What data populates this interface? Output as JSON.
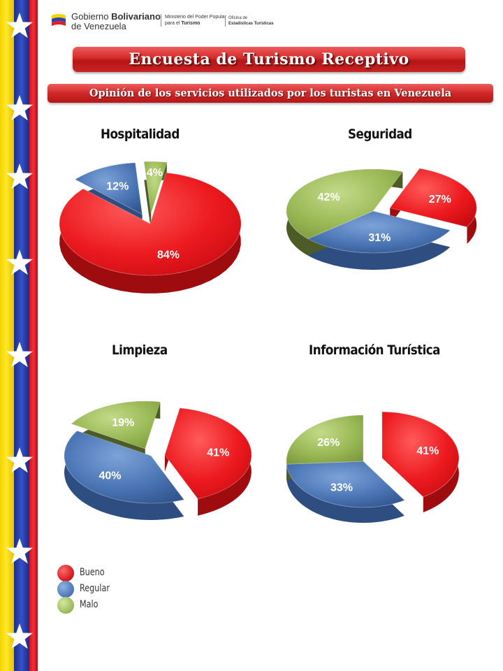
{
  "header": {
    "gob_line1_a": "Gobierno ",
    "gob_line1_b": "Bolivariano",
    "gob_line2": "de Venezuela",
    "ministerio_line1": "Ministerio del Poder Popular",
    "ministerio_line2_a": "para el ",
    "ministerio_line2_b": "Turismo",
    "oficina_line1": "Oficina de",
    "oficina_line2": "Estadísticas Turísticas"
  },
  "title": "Encuesta de Turismo Receptivo",
  "subtitle": "Opinión de los servicios utilizados por los turistas en Venezuela",
  "colors": {
    "bueno": "#e8151c",
    "regular": "#4a74b4",
    "malo": "#9ab955",
    "flag_yellow": "#f4d400",
    "flag_blue": "#2a44b5",
    "flag_red": "#e01e26"
  },
  "legend": {
    "items": [
      {
        "label": "Bueno",
        "color": "#e8151c"
      },
      {
        "label": "Regular",
        "color": "#4a74b4"
      },
      {
        "label": "Malo",
        "color": "#9ab955"
      }
    ]
  },
  "chart_data": [
    {
      "type": "pie",
      "title": "Hospitalidad",
      "slices": [
        {
          "label": "84%",
          "category": "Bueno",
          "value": 84
        },
        {
          "label": "12%",
          "category": "Regular",
          "value": 12
        },
        {
          "label": "4%",
          "category": "Malo",
          "value": 4
        }
      ]
    },
    {
      "type": "pie",
      "title": "Seguridad",
      "slices": [
        {
          "label": "27%",
          "category": "Bueno",
          "value": 27
        },
        {
          "label": "31%",
          "category": "Regular",
          "value": 31
        },
        {
          "label": "42%",
          "category": "Malo",
          "value": 42
        }
      ]
    },
    {
      "type": "pie",
      "title": "Limpieza",
      "slices": [
        {
          "label": "41%",
          "category": "Bueno",
          "value": 41
        },
        {
          "label": "40%",
          "category": "Regular",
          "value": 40
        },
        {
          "label": "19%",
          "category": "Malo",
          "value": 19
        }
      ]
    },
    {
      "type": "pie",
      "title": "Información Turística",
      "slices": [
        {
          "label": "41%",
          "category": "Bueno",
          "value": 41
        },
        {
          "label": "33%",
          "category": "Regular",
          "value": 33
        },
        {
          "label": "26%",
          "category": "Malo",
          "value": 26
        }
      ]
    }
  ]
}
